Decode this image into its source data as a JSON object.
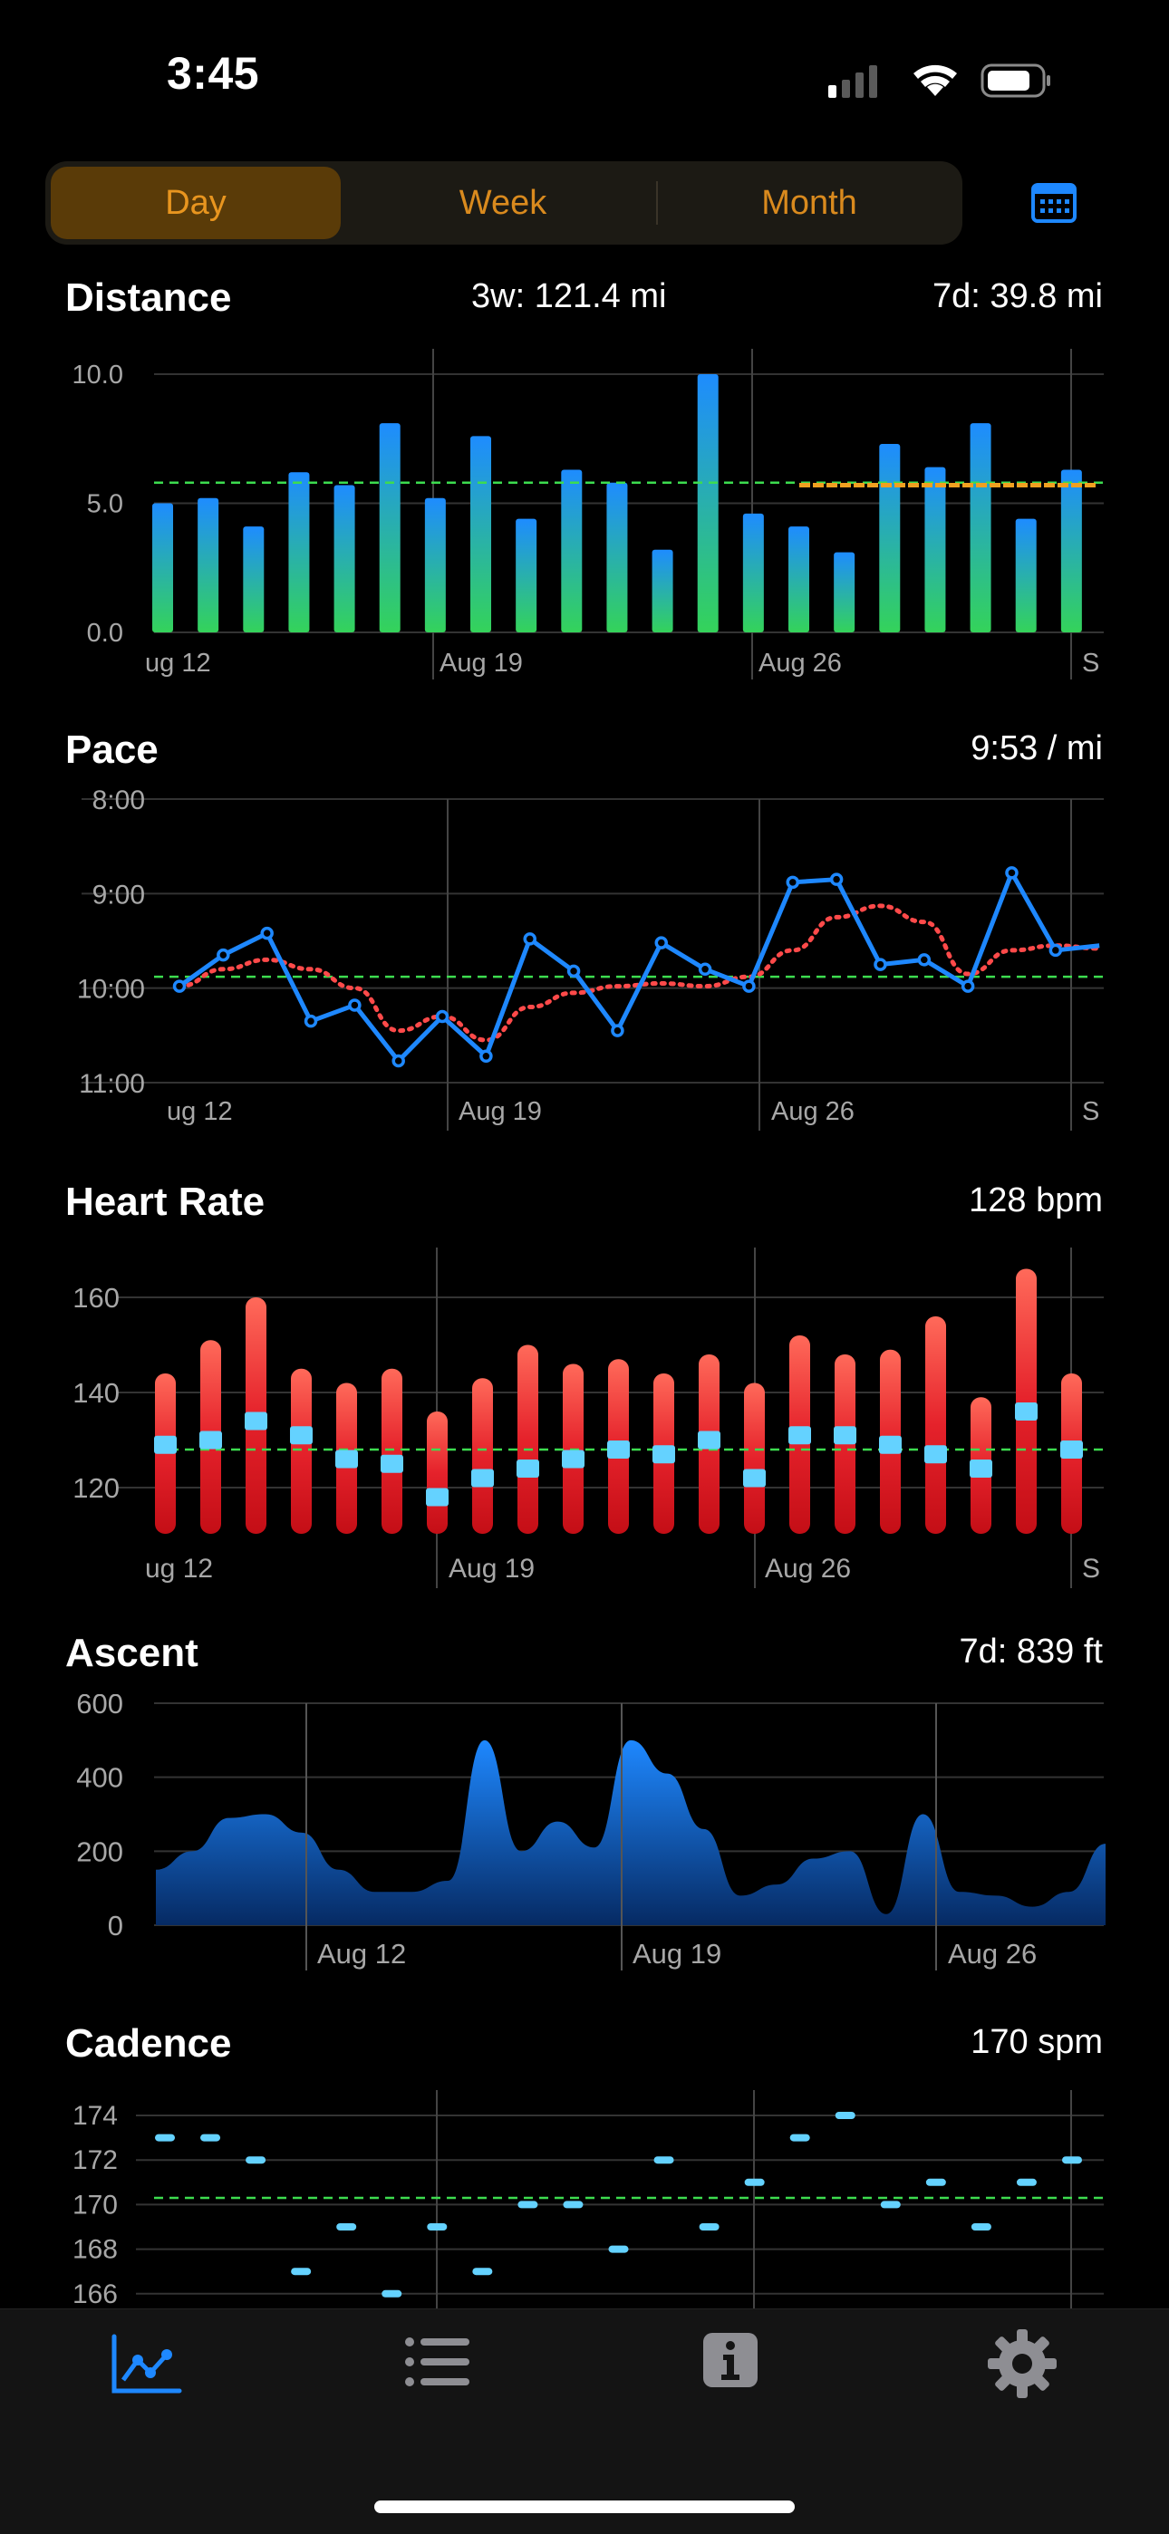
{
  "status_bar": {
    "time": "3:45"
  },
  "segments": {
    "items": [
      "Day",
      "Week",
      "Month"
    ],
    "selected": "Day"
  },
  "icons": {
    "calendar": "calendar-icon",
    "signal": "cellular-signal-icon",
    "wifi": "wifi-icon",
    "battery": "battery-icon"
  },
  "colors": {
    "accent": "#e8951f",
    "blue": "#1e88ff",
    "green_avg": "#3ddc4f",
    "red": "#e5222b",
    "cyan": "#64d2ff",
    "orange": "#f0a020"
  },
  "charts": {
    "distance": {
      "title": "Distance",
      "stat_center": "3w: 121.4 mi",
      "stat_right": "7d: 39.8 mi"
    },
    "pace": {
      "title": "Pace",
      "stat_right": "9:53 / mi"
    },
    "heart_rate": {
      "title": "Heart Rate",
      "stat_right": "128 bpm"
    },
    "ascent": {
      "title": "Ascent",
      "stat_right": "7d: 839 ft"
    },
    "cadence": {
      "title": "Cadence",
      "stat_right": "170 spm"
    }
  },
  "chart_data": [
    {
      "id": "distance",
      "type": "bar",
      "title": "Distance",
      "x_tick_labels": [
        "ug 12",
        "Aug 19",
        "Aug 26",
        "S"
      ],
      "y_tick_labels": [
        "10.0",
        "5.0",
        "0.0"
      ],
      "ylim": [
        0,
        10
      ],
      "values": [
        5.0,
        5.2,
        4.1,
        6.2,
        5.7,
        8.1,
        5.2,
        7.6,
        4.4,
        6.3,
        5.8,
        3.2,
        10.0,
        4.6,
        4.1,
        3.1,
        7.3,
        6.4,
        8.1,
        4.4,
        6.3
      ],
      "average": 5.8,
      "seven_day_average": 5.7
    },
    {
      "id": "pace",
      "type": "line",
      "title": "Pace",
      "x_tick_labels": [
        "ug 12",
        "Aug 19",
        "Aug 26",
        "S"
      ],
      "y_tick_labels": [
        "8:00",
        "9:00",
        "10:00",
        "11:00"
      ],
      "y_inverted": true,
      "ylim_minutes": [
        8,
        11
      ],
      "values_minutes": [
        9.98,
        9.65,
        9.42,
        10.35,
        10.18,
        10.77,
        10.3,
        10.72,
        9.48,
        9.82,
        10.45,
        9.52,
        9.8,
        9.98,
        8.88,
        8.85,
        9.75,
        9.7,
        9.98,
        8.78,
        9.6,
        9.55
      ],
      "trend_minutes": [
        9.98,
        9.8,
        9.7,
        9.8,
        10.0,
        10.45,
        10.3,
        10.55,
        10.2,
        10.05,
        9.98,
        9.95,
        9.98,
        9.88,
        9.6,
        9.25,
        9.13,
        9.3,
        9.85,
        9.6,
        9.55,
        9.58
      ],
      "average_minutes": 9.88
    },
    {
      "id": "heart_rate",
      "type": "bar",
      "title": "Heart Rate",
      "x_tick_labels": [
        "ug 12",
        "Aug 19",
        "Aug 26",
        "S"
      ],
      "y_tick_labels": [
        "160",
        "140",
        "120"
      ],
      "ylim": [
        110,
        165
      ],
      "max": [
        144,
        151,
        160,
        145,
        142,
        145,
        136,
        143,
        150,
        146,
        147,
        144,
        148,
        142,
        152,
        148,
        149,
        156,
        139,
        166,
        144
      ],
      "avg": [
        129,
        130,
        134,
        131,
        126,
        125,
        118,
        122,
        124,
        126,
        128,
        127,
        130,
        122,
        131,
        131,
        129,
        127,
        124,
        136,
        128
      ],
      "average": 128
    },
    {
      "id": "ascent",
      "type": "area",
      "title": "Ascent",
      "x_tick_labels": [
        "Aug 12",
        "Aug 19",
        "Aug 26"
      ],
      "y_tick_labels": [
        "600",
        "400",
        "200",
        "0"
      ],
      "ylim": [
        0,
        600
      ],
      "values": [
        150,
        200,
        290,
        300,
        250,
        150,
        90,
        90,
        120,
        500,
        200,
        280,
        210,
        500,
        410,
        260,
        80,
        110,
        180,
        200,
        30,
        300,
        90,
        80,
        50,
        90,
        220
      ]
    },
    {
      "id": "cadence",
      "type": "scatter",
      "title": "Cadence",
      "x_tick_labels": [],
      "y_tick_labels": [
        "174",
        "172",
        "170",
        "168",
        "166"
      ],
      "ylim": [
        165.5,
        175
      ],
      "values": [
        173,
        173,
        172,
        167,
        169,
        166,
        169,
        167,
        170,
        170,
        168,
        172,
        169,
        171,
        173,
        174,
        170,
        171,
        169,
        171,
        172
      ],
      "average": 170.3
    }
  ]
}
